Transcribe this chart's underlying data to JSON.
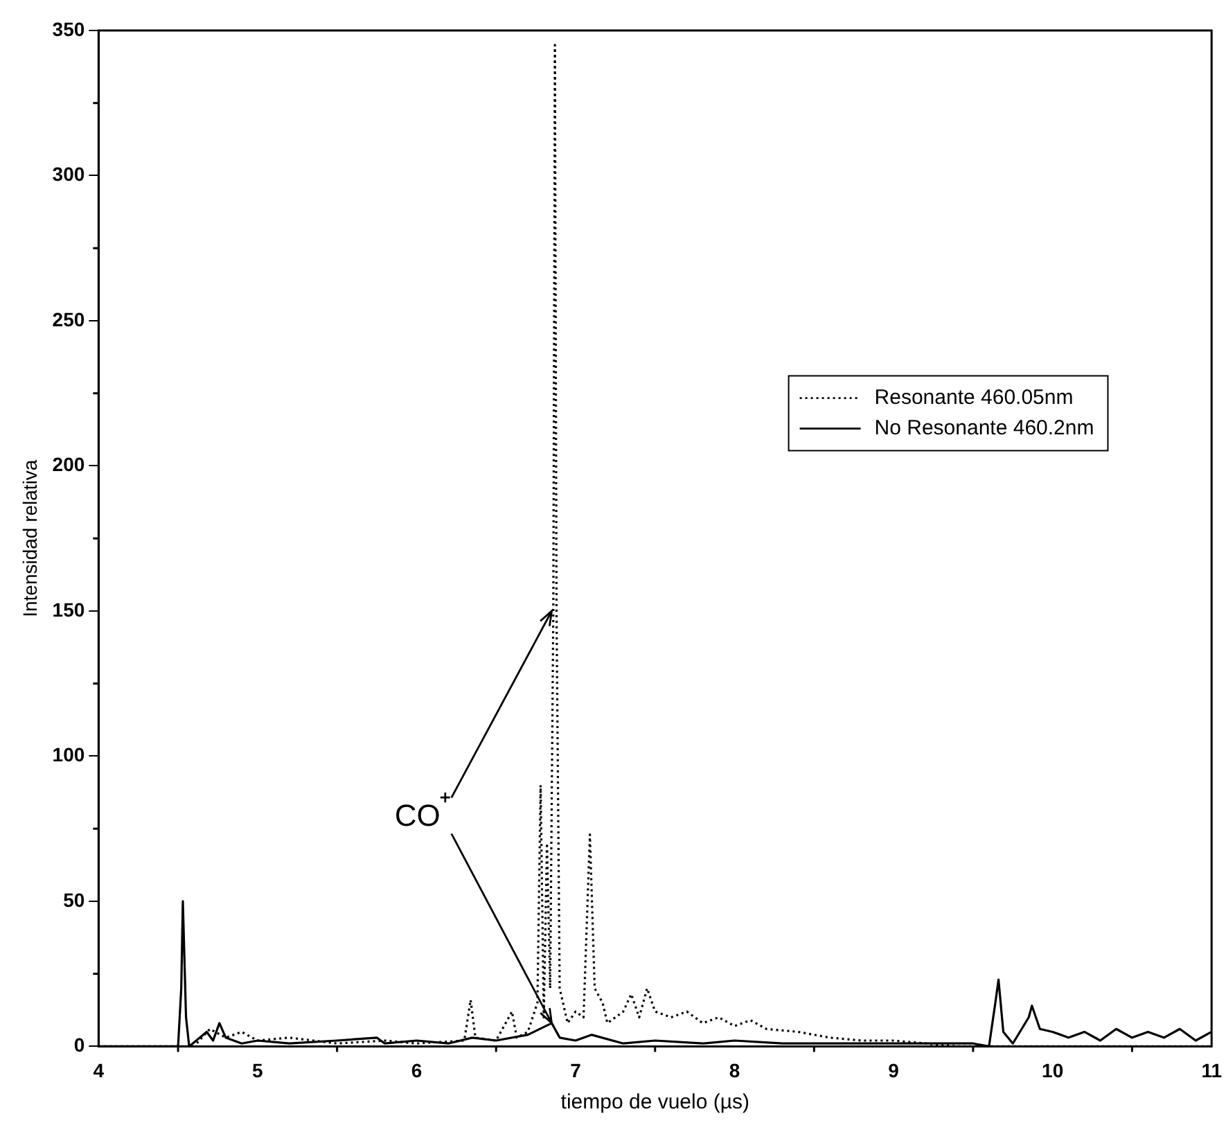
{
  "chart_data": {
    "type": "line",
    "xlabel": "tiempo de vuelo (µs)",
    "ylabel": "Intensidad relativa",
    "xlim": [
      4,
      11
    ],
    "xticks": [
      4,
      5,
      6,
      7,
      8,
      9,
      10,
      11
    ],
    "ylim": [
      0,
      350
    ],
    "yticks": [
      0,
      50,
      100,
      150,
      200,
      250,
      300,
      350
    ],
    "grid": false,
    "legend": "right",
    "marker": "none",
    "annotations": [
      {
        "text": "CO⁺",
        "x": 6.85,
        "y": 150
      }
    ],
    "series": [
      {
        "name": "Resonante 460.05nm",
        "color": "#000000",
        "line_style": "dotted",
        "x": [
          4.0,
          4.6,
          4.7,
          4.8,
          4.9,
          5.0,
          5.2,
          5.5,
          5.8,
          6.0,
          6.3,
          6.34,
          6.37,
          6.5,
          6.6,
          6.63,
          6.7,
          6.76,
          6.78,
          6.8,
          6.82,
          6.84,
          6.86,
          6.87,
          6.88,
          6.9,
          6.95,
          7.0,
          7.05,
          7.09,
          7.12,
          7.17,
          7.2,
          7.3,
          7.35,
          7.4,
          7.45,
          7.5,
          7.6,
          7.7,
          7.8,
          7.9,
          8.0,
          8.1,
          8.2,
          8.4,
          8.6,
          8.8,
          9.0,
          9.2,
          9.4,
          11.0
        ],
        "values": [
          0,
          0,
          6,
          3,
          5,
          2,
          3,
          1,
          2,
          1,
          2,
          16,
          3,
          2,
          12,
          3,
          5,
          15,
          90,
          10,
          70,
          20,
          150,
          345,
          150,
          20,
          8,
          12,
          10,
          73,
          20,
          15,
          8,
          12,
          18,
          10,
          20,
          12,
          10,
          12,
          8,
          10,
          7,
          9,
          6,
          5,
          3,
          2,
          2,
          1,
          0,
          0
        ]
      },
      {
        "name": "No Resonante 460.2nm",
        "color": "#000000",
        "line_style": "solid",
        "x": [
          4.0,
          4.5,
          4.52,
          4.53,
          4.55,
          4.57,
          4.68,
          4.72,
          4.76,
          4.8,
          4.9,
          5.0,
          5.2,
          5.5,
          5.75,
          5.8,
          6.0,
          6.2,
          6.35,
          6.5,
          6.7,
          6.85,
          6.9,
          7.0,
          7.1,
          7.3,
          7.5,
          7.8,
          8.0,
          8.3,
          8.6,
          9.0,
          9.5,
          9.6,
          9.64,
          9.66,
          9.69,
          9.75,
          9.85,
          9.87,
          9.92,
          10.0,
          10.1,
          10.2,
          10.3,
          10.4,
          10.5,
          10.6,
          10.7,
          10.8,
          10.9,
          11.0
        ],
        "values": [
          0,
          0,
          20,
          50,
          10,
          0,
          5,
          2,
          8,
          3,
          1,
          2,
          1,
          2,
          3,
          1,
          2,
          1,
          3,
          2,
          4,
          8,
          3,
          2,
          4,
          1,
          2,
          1,
          2,
          1,
          1,
          1,
          1,
          0,
          15,
          23,
          5,
          1,
          10,
          14,
          6,
          5,
          3,
          5,
          2,
          6,
          3,
          5,
          3,
          6,
          2,
          5
        ]
      }
    ]
  }
}
